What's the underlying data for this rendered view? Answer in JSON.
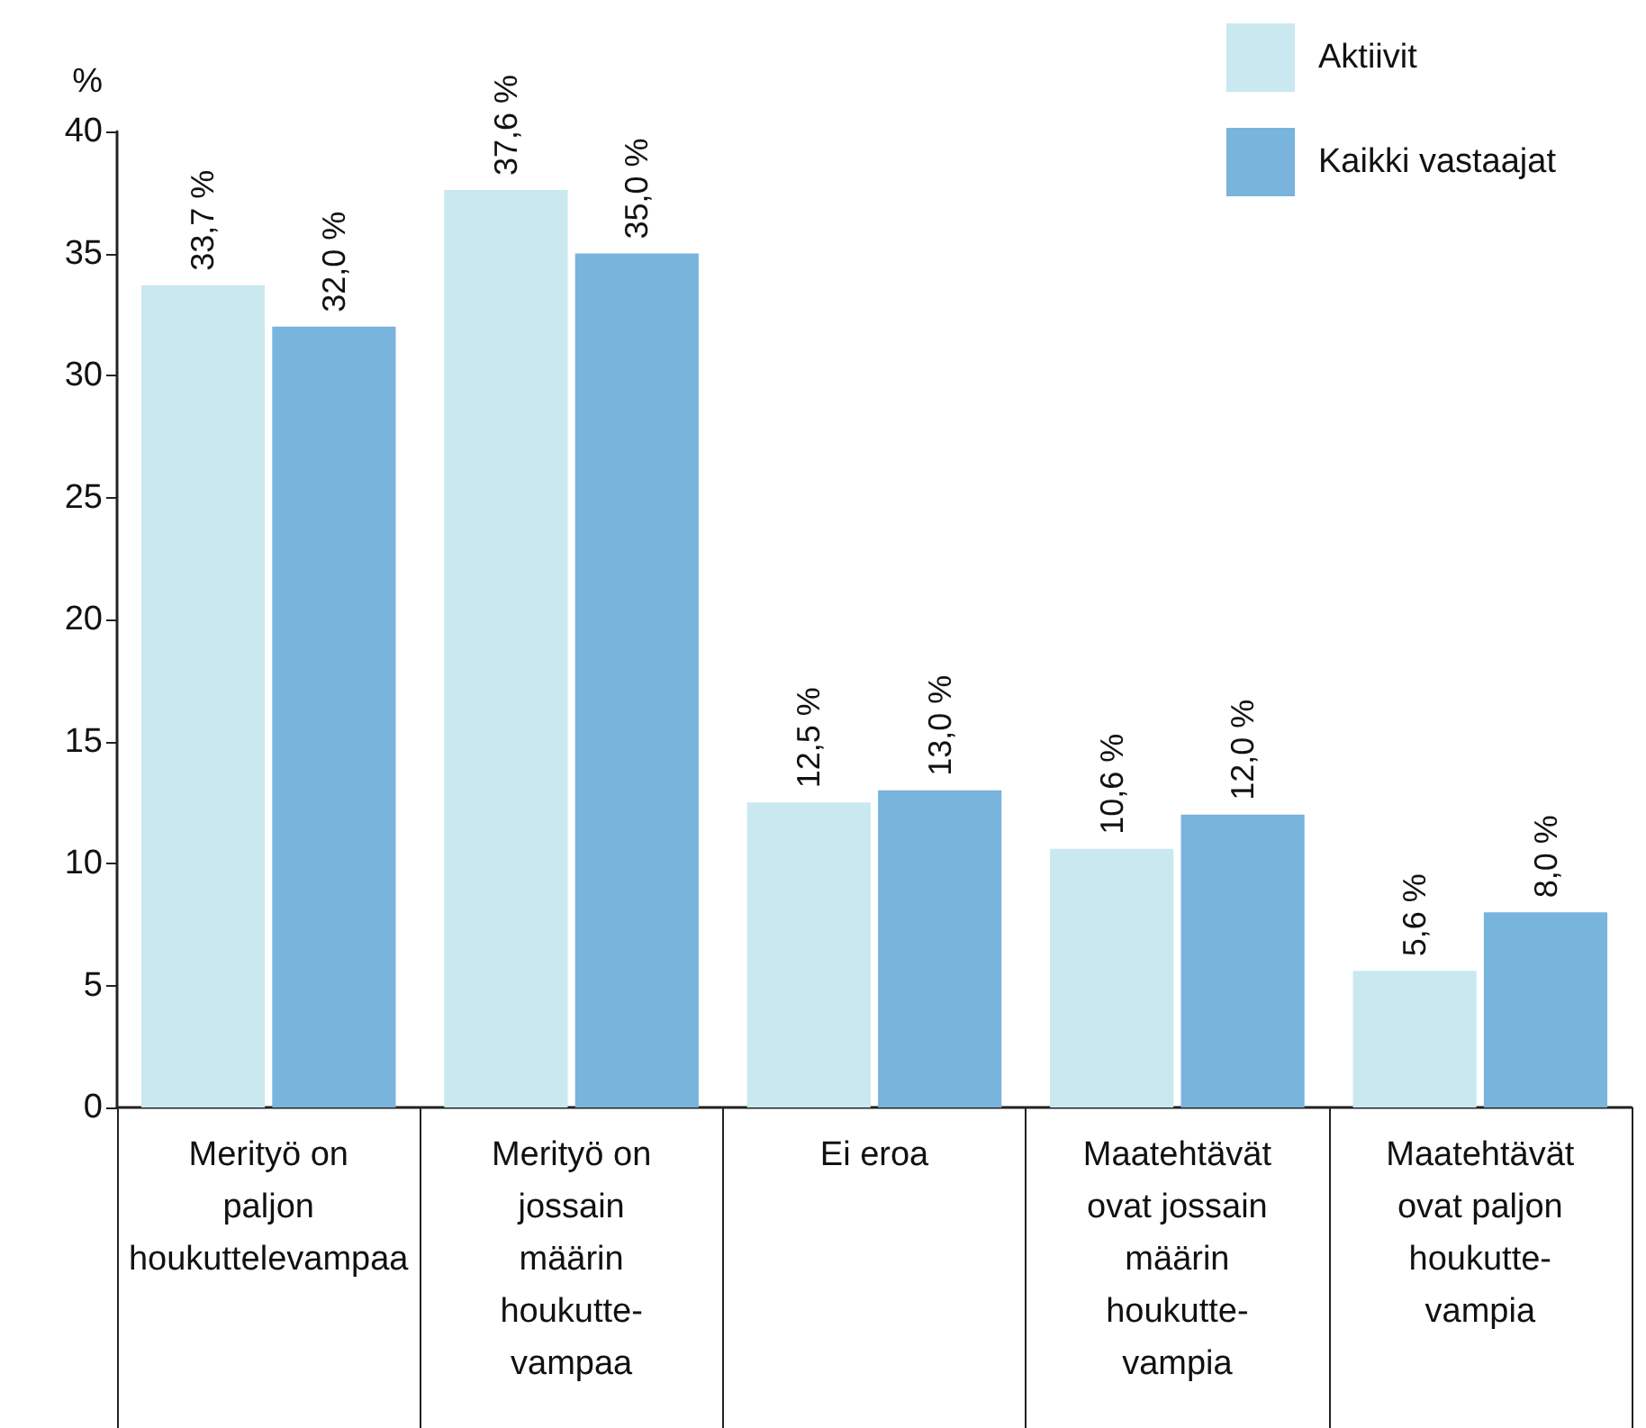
{
  "chart_data": {
    "type": "bar",
    "ylabel": "%",
    "categories": [
      "Merityö on\npaljon\nhoukuttelevampaa",
      "Merityö on\njossain\nmäärin\nhoukutte-\nvampaa",
      "Ei eroa",
      "Maatehtävät\novat jossain\nmäärin\nhoukutte-\nvampia",
      "Maatehtävät\novat paljon\nhoukutte-\nvampia"
    ],
    "series": [
      {
        "name": "Aktiivit",
        "color": "#c9e8ef",
        "values": [
          33.7,
          37.6,
          12.5,
          10.6,
          5.6
        ],
        "value_labels": [
          "33,7 %",
          "37,6 %",
          "12,5 %",
          "10,6 %",
          "5,6 %"
        ]
      },
      {
        "name": "Kaikki vastaajat",
        "color": "#78b4db",
        "values": [
          32.0,
          35.0,
          13.0,
          12.0,
          8.0
        ],
        "value_labels": [
          "32,0 %",
          "35,0 %",
          "13,0 %",
          "12,0 %",
          "8,0 %"
        ]
      }
    ],
    "ylim": [
      0,
      40
    ],
    "yticks": [
      0,
      5,
      10,
      15,
      20,
      25,
      30,
      35,
      40
    ],
    "grid": false,
    "legend": "top right"
  }
}
